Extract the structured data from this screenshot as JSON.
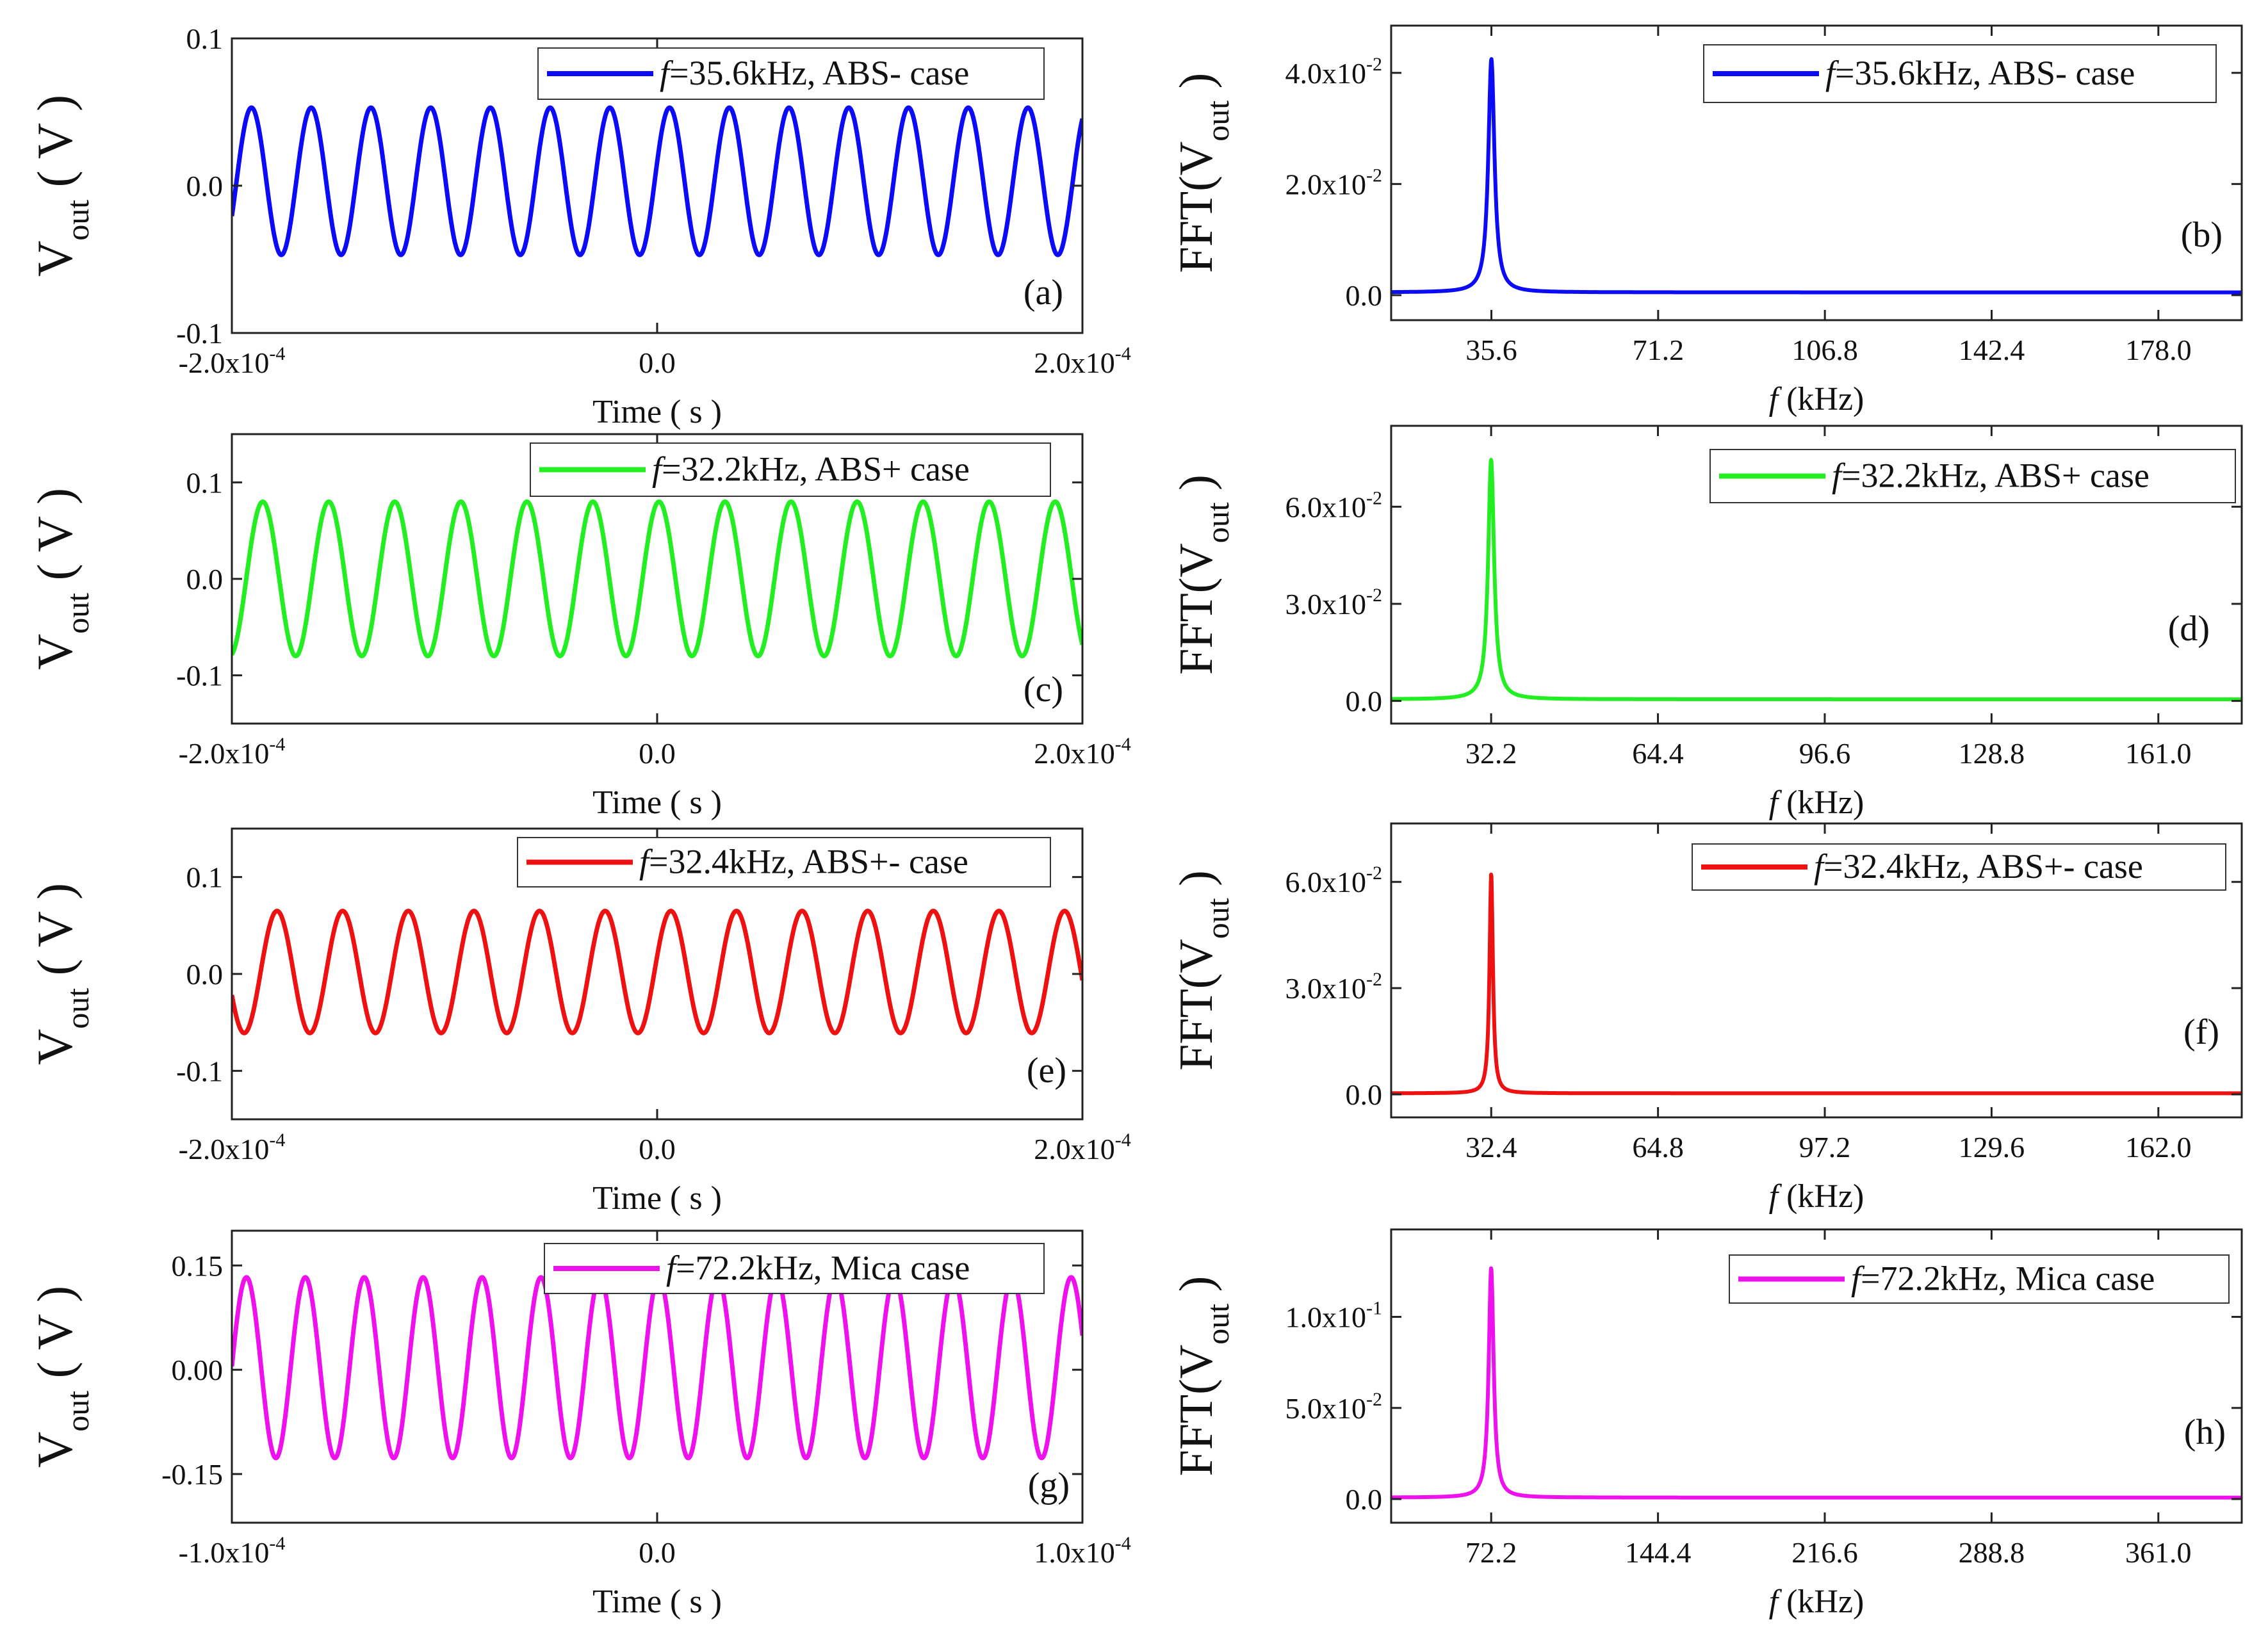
{
  "chart_data": [
    {
      "panel": "(a)",
      "type": "line",
      "title": "",
      "series": [
        {
          "name": "=35.6kHz, ABS- case",
          "legend_prefix": "f",
          "color": "#0b0bf5",
          "frequency_khz": 35.6,
          "amplitude": 0.05,
          "offset": 0.003,
          "phase_deg": 15
        }
      ],
      "xlabel": "Time ( s )",
      "ylabel_main": "V",
      "ylabel_sub": "out",
      "ylabel_unit": "( V )",
      "xlim": [
        -0.0002,
        0.0002
      ],
      "ylim": [
        -0.1,
        0.1
      ],
      "xticks": [
        {
          "v": -0.0002,
          "mant": "-2.0x10",
          "exp": "-4"
        },
        {
          "v": 0,
          "mant": "0.0",
          "exp": ""
        },
        {
          "v": 0.0002,
          "mant": "2.0x10",
          "exp": "-4"
        }
      ],
      "yticks": [
        {
          "v": 0.1,
          "mant": "0.1",
          "exp": ""
        },
        {
          "v": 0,
          "mant": "0.0",
          "exp": ""
        },
        {
          "v": -0.1,
          "mant": "-0.1",
          "exp": ""
        }
      ]
    },
    {
      "panel": "(b)",
      "type": "line",
      "title": "",
      "series": [
        {
          "name": "=35.6kHz, ABS- case",
          "legend_prefix": "f",
          "color": "#0b0bf5",
          "peak_khz": 35.6,
          "peak_value": 0.042,
          "gamma_khz": 0.8,
          "baseline": 0.0005
        }
      ],
      "xlabel_italic": "f",
      "xlabel": " (kHz)",
      "ylabel_main": "FFT(V",
      "ylabel_sub": "out",
      "ylabel_unit": ")",
      "xlim": [
        14.2,
        195.8
      ],
      "ylim": [
        -0.0045,
        0.0485
      ],
      "xticks": [
        {
          "v": 35.6,
          "mant": "35.6",
          "exp": ""
        },
        {
          "v": 71.2,
          "mant": "71.2",
          "exp": ""
        },
        {
          "v": 106.8,
          "mant": "106.8",
          "exp": ""
        },
        {
          "v": 142.4,
          "mant": "142.4",
          "exp": ""
        },
        {
          "v": 178,
          "mant": "178.0",
          "exp": ""
        }
      ],
      "yticks": [
        {
          "v": 0.04,
          "mant": "4.0x10",
          "exp": "-2"
        },
        {
          "v": 0.02,
          "mant": "2.0x10",
          "exp": "-2"
        },
        {
          "v": 0,
          "mant": "0.0",
          "exp": ""
        }
      ]
    },
    {
      "panel": "(c)",
      "type": "line",
      "title": "",
      "series": [
        {
          "name": "=32.2kHz, ABS+ case",
          "legend_prefix": "f",
          "color": "#22ee22",
          "frequency_khz": 32.2,
          "amplitude": 0.08,
          "offset": 0.0,
          "phase_deg": 80
        }
      ],
      "xlabel": "Time ( s )",
      "ylabel_main": "V",
      "ylabel_sub": "out",
      "ylabel_unit": "( V )",
      "xlim": [
        -0.0002,
        0.0002
      ],
      "ylim": [
        -0.15,
        0.15
      ],
      "xticks": [
        {
          "v": -0.0002,
          "mant": "-2.0x10",
          "exp": "-4"
        },
        {
          "v": 0,
          "mant": "0.0",
          "exp": ""
        },
        {
          "v": 0.0002,
          "mant": "2.0x10",
          "exp": "-4"
        }
      ],
      "yticks": [
        {
          "v": 0.1,
          "mant": "0.1",
          "exp": ""
        },
        {
          "v": 0,
          "mant": "0.0",
          "exp": ""
        },
        {
          "v": -0.1,
          "mant": "-0.1",
          "exp": ""
        }
      ]
    },
    {
      "panel": "(d)",
      "type": "line",
      "title": "",
      "series": [
        {
          "name": "=32.2kHz, ABS+ case",
          "legend_prefix": "f",
          "color": "#22ee22",
          "peak_khz": 32.2,
          "peak_value": 0.074,
          "gamma_khz": 0.7,
          "baseline": 0.0005
        }
      ],
      "xlabel_italic": "f",
      "xlabel": " (kHz)",
      "ylabel_main": "FFT(V",
      "ylabel_sub": "out",
      "ylabel_unit": ")",
      "xlim": [
        12.9,
        177.1
      ],
      "ylim": [
        -0.007,
        0.085
      ],
      "xticks": [
        {
          "v": 32.2,
          "mant": "32.2",
          "exp": ""
        },
        {
          "v": 64.4,
          "mant": "64.4",
          "exp": ""
        },
        {
          "v": 96.6,
          "mant": "96.6",
          "exp": ""
        },
        {
          "v": 128.8,
          "mant": "128.8",
          "exp": ""
        },
        {
          "v": 161,
          "mant": "161.0",
          "exp": ""
        }
      ],
      "yticks": [
        {
          "v": 0.06,
          "mant": "6.0x10",
          "exp": "-2"
        },
        {
          "v": 0.03,
          "mant": "3.0x10",
          "exp": "-2"
        },
        {
          "v": 0,
          "mant": "0.0",
          "exp": ""
        }
      ]
    },
    {
      "panel": "(e)",
      "type": "line",
      "title": "",
      "series": [
        {
          "name": "=32.4kHz, ABS+- case",
          "legend_prefix": "f",
          "color": "#ee1111",
          "frequency_khz": 32.4,
          "amplitude": 0.063,
          "offset": 0.002,
          "phase_deg": 15
        }
      ],
      "xlabel": "Time ( s )",
      "ylabel_main": "V",
      "ylabel_sub": "out",
      "ylabel_unit": "( V )",
      "xlim": [
        -0.0002,
        0.0002
      ],
      "ylim": [
        -0.15,
        0.15
      ],
      "xticks": [
        {
          "v": -0.0002,
          "mant": "-2.0x10",
          "exp": "-4"
        },
        {
          "v": 0,
          "mant": "0.0",
          "exp": ""
        },
        {
          "v": 0.0002,
          "mant": "2.0x10",
          "exp": "-4"
        }
      ],
      "yticks": [
        {
          "v": 0.1,
          "mant": "0.1",
          "exp": ""
        },
        {
          "v": 0,
          "mant": "0.0",
          "exp": ""
        },
        {
          "v": -0.1,
          "mant": "-0.1",
          "exp": ""
        }
      ]
    },
    {
      "panel": "(f)",
      "type": "line",
      "title": "",
      "series": [
        {
          "name": "=32.4kHz, ABS+- case",
          "legend_prefix": "f",
          "color": "#ee1111",
          "peak_khz": 32.4,
          "peak_value": 0.062,
          "gamma_khz": 0.4,
          "baseline": 0.0003
        }
      ],
      "xlabel_italic": "f",
      "xlabel": " (kHz)",
      "ylabel_main": "FFT(V",
      "ylabel_sub": "out",
      "ylabel_unit": ")",
      "xlim": [
        12.96,
        178.2
      ],
      "ylim": [
        -0.0065,
        0.0765
      ],
      "xticks": [
        {
          "v": 32.4,
          "mant": "32.4",
          "exp": ""
        },
        {
          "v": 64.8,
          "mant": "64.8",
          "exp": ""
        },
        {
          "v": 97.2,
          "mant": "97.2",
          "exp": ""
        },
        {
          "v": 129.6,
          "mant": "129.6",
          "exp": ""
        },
        {
          "v": 162,
          "mant": "162.0",
          "exp": ""
        }
      ],
      "yticks": [
        {
          "v": 0.06,
          "mant": "6.0x10",
          "exp": "-2"
        },
        {
          "v": 0.03,
          "mant": "3.0x10",
          "exp": "-2"
        },
        {
          "v": 0,
          "mant": "0.0",
          "exp": ""
        }
      ]
    },
    {
      "panel": "(g)",
      "type": "line",
      "title": "",
      "series": [
        {
          "name": "=72.2kHz, Mica case",
          "legend_prefix": "f",
          "color": "#ee11ee",
          "frequency_khz": 72.2,
          "amplitude": 0.13,
          "offset": 0.003,
          "phase_deg": 80
        }
      ],
      "xlabel": "Time ( s )",
      "ylabel_main": "V",
      "ylabel_sub": "out",
      "ylabel_unit": "( V )",
      "xlim": [
        -0.0001,
        0.0001
      ],
      "ylim": [
        -0.22,
        0.2
      ],
      "xticks": [
        {
          "v": -0.0001,
          "mant": "-1.0x10",
          "exp": "-4"
        },
        {
          "v": 0,
          "mant": "0.0",
          "exp": ""
        },
        {
          "v": 0.0001,
          "mant": "1.0x10",
          "exp": "-4"
        }
      ],
      "yticks": [
        {
          "v": 0.15,
          "mant": "0.15",
          "exp": ""
        },
        {
          "v": 0,
          "mant": "0.00",
          "exp": ""
        },
        {
          "v": -0.15,
          "mant": "-0.15",
          "exp": ""
        }
      ]
    },
    {
      "panel": "(h)",
      "type": "line",
      "title": "",
      "series": [
        {
          "name": "=72.2kHz, Mica case",
          "legend_prefix": "f",
          "color": "#ee11ee",
          "peak_khz": 72.2,
          "peak_value": 0.126,
          "gamma_khz": 1.3,
          "baseline": 0.0008
        }
      ],
      "xlabel_italic": "f",
      "xlabel": " (kHz)",
      "ylabel_main": "FFT(V",
      "ylabel_sub": "out",
      "ylabel_unit": ")",
      "xlim": [
        28.9,
        397.1
      ],
      "ylim": [
        -0.013,
        0.148
      ],
      "xticks": [
        {
          "v": 72.2,
          "mant": "72.2",
          "exp": ""
        },
        {
          "v": 144.4,
          "mant": "144.4",
          "exp": ""
        },
        {
          "v": 216.6,
          "mant": "216.6",
          "exp": ""
        },
        {
          "v": 288.8,
          "mant": "288.8",
          "exp": ""
        },
        {
          "v": 361,
          "mant": "361.0",
          "exp": ""
        }
      ],
      "yticks": [
        {
          "v": 0.1,
          "mant": "1.0x10",
          "exp": "-1"
        },
        {
          "v": 0.05,
          "mant": "5.0x10",
          "exp": "-2"
        },
        {
          "v": 0,
          "mant": "0.0",
          "exp": ""
        }
      ]
    }
  ]
}
